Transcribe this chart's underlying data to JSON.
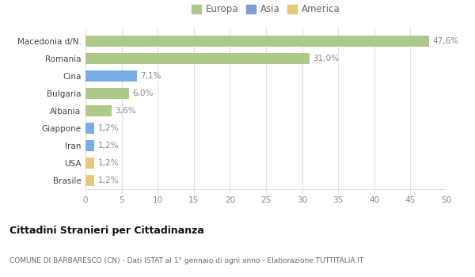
{
  "categories": [
    "Brasile",
    "USA",
    "Iran",
    "Giappone",
    "Albania",
    "Bulgaria",
    "Cina",
    "Romania",
    "Macedonia d/N."
  ],
  "values": [
    1.2,
    1.2,
    1.2,
    1.2,
    3.6,
    6.0,
    7.1,
    31.0,
    47.6
  ],
  "colors": [
    "#e8c97a",
    "#e8c97a",
    "#7aace8",
    "#7aace8",
    "#adc98a",
    "#adc98a",
    "#7aace8",
    "#adc98a",
    "#adc98a"
  ],
  "labels": [
    "1,2%",
    "1,2%",
    "1,2%",
    "1,2%",
    "3,6%",
    "6,0%",
    "7,1%",
    "31,0%",
    "47,6%"
  ],
  "xlim": [
    0,
    50
  ],
  "xticks": [
    0,
    5,
    10,
    15,
    20,
    25,
    30,
    35,
    40,
    45,
    50
  ],
  "legend_labels": [
    "Europa",
    "Asia",
    "America"
  ],
  "legend_colors": [
    "#adc98a",
    "#7a9fd4",
    "#e8c97a"
  ],
  "title": "Cittadini Stranieri per Cittadinanza",
  "subtitle": "COMUNE DI BARBARESCO (CN) - Dati ISTAT al 1° gennaio di ogni anno - Elaborazione TUTTITALIA.IT",
  "background_color": "#ffffff",
  "grid_color": "#e0e0e0",
  "label_color": "#888888",
  "title_color": "#111111",
  "subtitle_color": "#666666"
}
